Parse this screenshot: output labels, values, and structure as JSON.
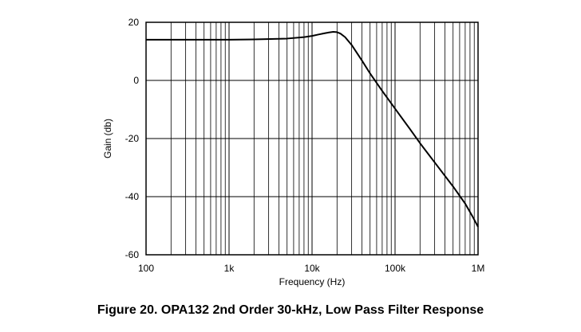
{
  "caption": "Figure 20.  OPA132 2nd Order 30-kHz, Low Pass Filter Response",
  "chart_data": {
    "type": "line",
    "title": "",
    "xlabel": "Frequency (Hz)",
    "ylabel": "Gain (db)",
    "xscale": "log",
    "xlim": [
      100,
      1000000
    ],
    "ylim": [
      -60,
      20
    ],
    "grid": true,
    "x_ticks": [
      100,
      1000,
      10000,
      100000,
      1000000
    ],
    "x_tick_labels": [
      "100",
      "1k",
      "10k",
      "100k",
      "1M"
    ],
    "y_ticks": [
      20,
      0,
      -20,
      -40,
      -60
    ],
    "y_tick_labels": [
      "20",
      "0",
      "-20",
      "-40",
      "-60"
    ],
    "series": [
      {
        "x": [
          100,
          200,
          500,
          1000,
          2000,
          5000,
          8000,
          10000,
          12000,
          14000,
          16000,
          18000,
          20000,
          22000,
          25000,
          30000,
          40000,
          50000,
          70000,
          100000,
          150000,
          200000,
          300000,
          500000,
          700000,
          850000,
          1000000
        ],
        "values": [
          14,
          14,
          14,
          14,
          14.1,
          14.4,
          14.9,
          15.3,
          15.8,
          16.2,
          16.5,
          16.7,
          16.6,
          16.1,
          14.9,
          12.2,
          6.8,
          2.4,
          -3.6,
          -9.7,
          -16.6,
          -21.6,
          -28.2,
          -36.5,
          -42.4,
          -46.6,
          -50.4
        ]
      }
    ]
  }
}
